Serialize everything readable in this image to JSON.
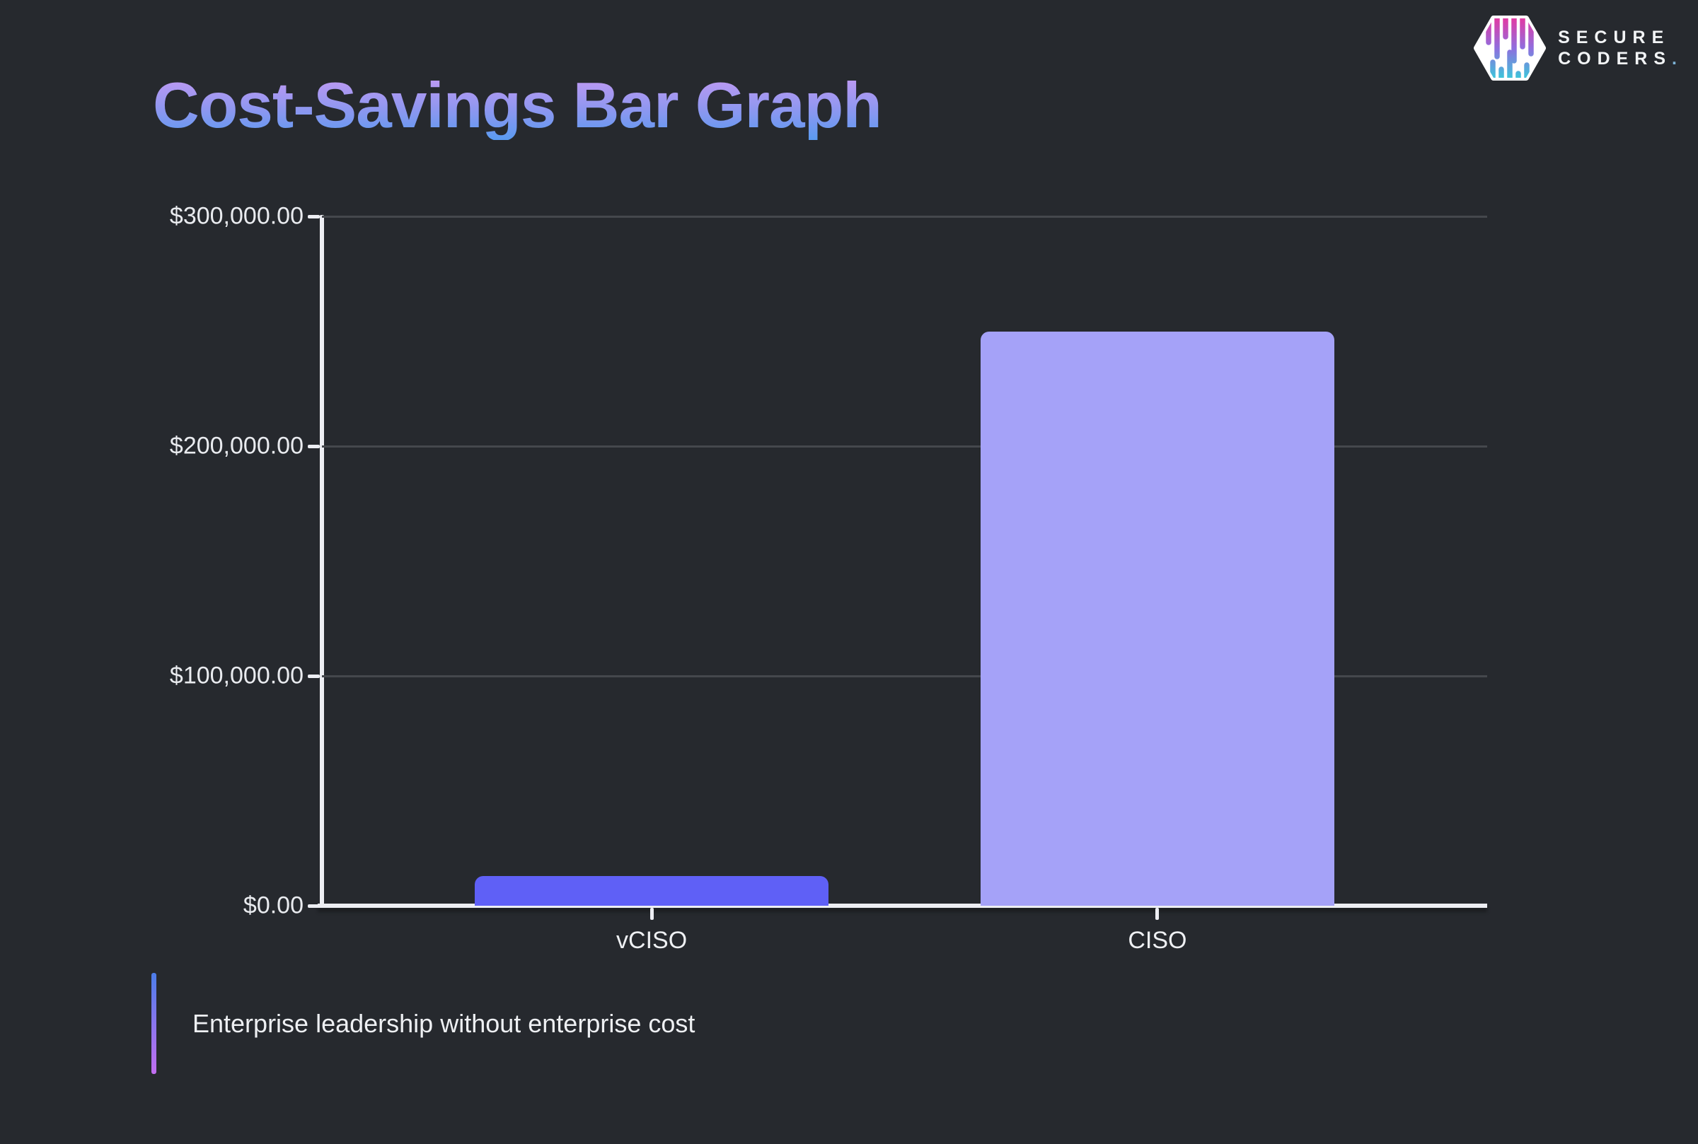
{
  "brand": {
    "name_line1": "SECURE",
    "name_line2": "CODERS",
    "period": ".",
    "period_color": "#7db2d6",
    "logo_icon": "secure-coders-hex-drip-logo",
    "logo_drip_top_color": "#e23aa4",
    "logo_drip_bottom_color": "#3ec4da"
  },
  "title": {
    "text": "Cost-Savings Bar Graph",
    "gradient_top": "#c79af3",
    "gradient_bottom": "#5a9af0"
  },
  "caption": {
    "text": "Enterprise leadership without enterprise cost",
    "accent_gradient_top": "#4b7dea",
    "accent_gradient_bottom": "#c26ef0"
  },
  "chart_data": {
    "type": "bar",
    "title": "Cost-Savings Bar Graph",
    "categories": [
      "vCISO",
      "CISO"
    ],
    "values": [
      13000,
      250000
    ],
    "value_format": "USD",
    "bar_colors": [
      "#5f60f6",
      "#a5a2f8"
    ],
    "ylim": [
      0,
      300000
    ],
    "yticks": [
      {
        "label": "$300,000.00",
        "value": 300000
      },
      {
        "label": "$200,000.00",
        "value": 200000
      },
      {
        "label": "$100,000.00",
        "value": 100000
      },
      {
        "label": "$0.00",
        "value": 0
      }
    ],
    "xlabel": "",
    "ylabel": "",
    "grid": "horizontal-gridlines",
    "legend": "none",
    "background": "#26292e",
    "axis_color": "#edeef3",
    "gridline_color": "#45484d",
    "tick_label_color": "#e9ebef"
  }
}
